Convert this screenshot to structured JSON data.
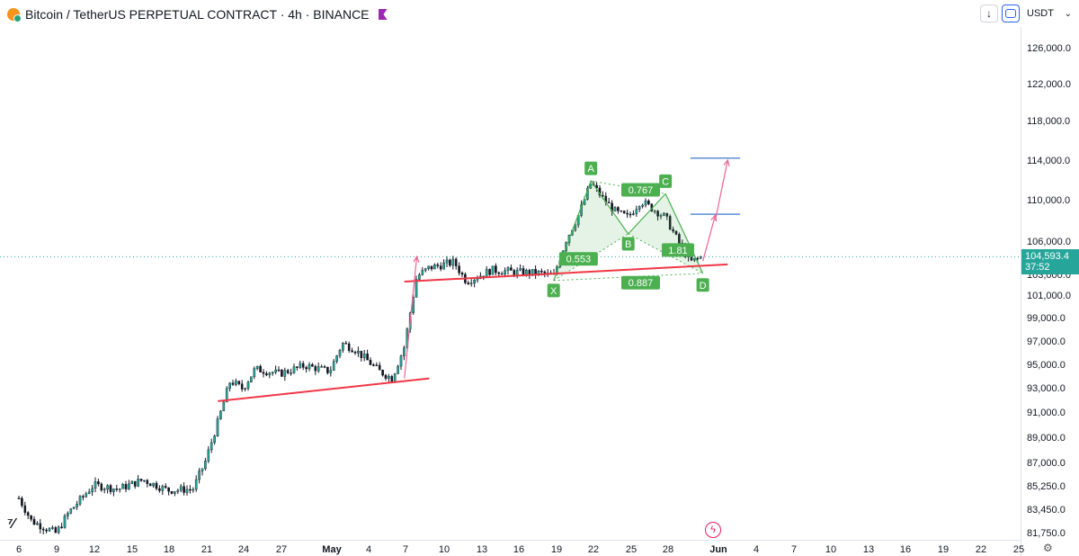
{
  "header": {
    "title": "Bitcoin / TetherUS PERPETUAL CONTRACT · 4h · BINANCE"
  },
  "toolbar": {
    "down_arrow": "↓",
    "currency": "USDT",
    "chevron": "⌄"
  },
  "last_price": {
    "value": "104,593.4",
    "countdown": "37:52",
    "price": 104593.4,
    "color": "#26a69a"
  },
  "colors": {
    "up": "#26a69a",
    "down": "#ef5350",
    "candle_body": "#131722",
    "pattern": "#4caf50",
    "trendline": "#f23645",
    "target": "#5b8fd6",
    "arrow": "#f06292"
  },
  "chart_data": {
    "type": "candlestick",
    "title": "Bitcoin / TetherUS PERPETUAL CONTRACT · 4h · BINANCE",
    "x_axis": {
      "tick_labels": [
        "6",
        "9",
        "12",
        "15",
        "18",
        "21",
        "24",
        "27",
        "May",
        "4",
        "7",
        "10",
        "13",
        "16",
        "19",
        "22",
        "25",
        "28",
        "Jun",
        "4",
        "7",
        "10",
        "13",
        "16",
        "19",
        "22",
        "25"
      ]
    },
    "y_axis": {
      "tick_labels": [
        "126,000.0",
        "122,000.0",
        "118,000.0",
        "114,000.0",
        "110,000.0",
        "106,000.0",
        "103,000.0",
        "101,000.0",
        "99,000.0",
        "97,000.0",
        "95,000.0",
        "93,000.0",
        "91,000.0",
        "89,000.0",
        "87,000.0",
        "85,250.0",
        "83,450.0",
        "81,750.0"
      ],
      "ticks": [
        126000,
        122000,
        118000,
        114000,
        110000,
        106000,
        103000,
        101000,
        99000,
        97000,
        95000,
        93000,
        91000,
        89000,
        87000,
        85250,
        83450,
        81750
      ]
    },
    "price_path": [
      {
        "date": "Apr 6",
        "close": 84300
      },
      {
        "date": "Apr 7",
        "close": 82600
      },
      {
        "date": "Apr 9",
        "close": 81700
      },
      {
        "date": "Apr 10",
        "close": 83200
      },
      {
        "date": "Apr 12",
        "close": 85300
      },
      {
        "date": "Apr 14",
        "close": 85000
      },
      {
        "date": "Apr 16",
        "close": 85700
      },
      {
        "date": "Apr 18",
        "close": 84900
      },
      {
        "date": "Apr 20",
        "close": 85000
      },
      {
        "date": "Apr 21",
        "close": 87100
      },
      {
        "date": "Apr 22",
        "close": 90200
      },
      {
        "date": "Apr 23",
        "close": 93600
      },
      {
        "date": "Apr 24",
        "close": 92900
      },
      {
        "date": "Apr 25",
        "close": 94600
      },
      {
        "date": "Apr 27",
        "close": 94200
      },
      {
        "date": "Apr 29",
        "close": 94900
      },
      {
        "date": "May 1",
        "close": 94400
      },
      {
        "date": "May 2",
        "close": 96800
      },
      {
        "date": "May 3",
        "close": 96300
      },
      {
        "date": "May 5",
        "close": 94400
      },
      {
        "date": "May 6",
        "close": 93800
      },
      {
        "date": "May 7",
        "close": 96500
      },
      {
        "date": "May 8",
        "close": 102800
      },
      {
        "date": "May 9",
        "close": 103600
      },
      {
        "date": "May 11",
        "close": 104100
      },
      {
        "date": "May 12",
        "close": 102300
      },
      {
        "date": "May 14",
        "close": 103400
      },
      {
        "date": "May 16",
        "close": 103200
      },
      {
        "date": "May 18",
        "close": 103100
      },
      {
        "date": "May 19",
        "close": 102800
      },
      {
        "date": "May 20",
        "close": 106100
      },
      {
        "date": "May 21",
        "close": 108500
      },
      {
        "date": "May 22",
        "close": 111700
      },
      {
        "date": "May 23",
        "close": 110100
      },
      {
        "date": "May 24",
        "close": 108800
      },
      {
        "date": "May 25",
        "close": 108300
      },
      {
        "date": "May 26",
        "close": 109900
      },
      {
        "date": "May 27",
        "close": 109100
      },
      {
        "date": "May 28",
        "close": 108300
      },
      {
        "date": "May 29",
        "close": 106000
      },
      {
        "date": "May 30",
        "close": 104100
      },
      {
        "date": "May 31",
        "close": 104593
      }
    ],
    "harmonic_pattern": {
      "points": [
        {
          "label": "X",
          "date": "May 19",
          "price": 102400
        },
        {
          "label": "A",
          "date": "May 22",
          "price": 111900
        },
        {
          "label": "B",
          "date": "May 25",
          "price": 106700
        },
        {
          "label": "C",
          "date": "May 28",
          "price": 110600
        },
        {
          "label": "D",
          "date": "May 31",
          "price": 103100
        }
      ],
      "ratios": [
        {
          "value": "0.767",
          "date": "May 26",
          "price": 111000
        },
        {
          "value": "0.553",
          "date": "May 21",
          "price": 104400
        },
        {
          "value": "1.81",
          "date": "May 29",
          "price": 105200
        },
        {
          "value": "0.887",
          "date": "May 26",
          "price": 102200
        }
      ]
    },
    "trendlines": [
      {
        "from": {
          "date": "Apr 22",
          "price": 91900
        },
        "to": {
          "date": "May 9",
          "price": 93800
        }
      },
      {
        "from": {
          "date": "May 7",
          "price": 102300
        },
        "to": {
          "date": "Jun 2",
          "price": 103900
        }
      }
    ],
    "target_levels": [
      {
        "price": 114200,
        "from": "May 30",
        "to": "Jun 3"
      },
      {
        "price": 108600,
        "from": "May 30",
        "to": "Jun 3"
      }
    ],
    "projection_arrows": [
      {
        "from": {
          "date": "May 7",
          "price": 93800
        },
        "to": {
          "date": "May 8",
          "price": 104600
        }
      },
      {
        "from": {
          "date": "May 31",
          "price": 104200
        },
        "to": {
          "date": "Jun 1",
          "price": 108500
        }
      },
      {
        "from": {
          "date": "Jun 1",
          "price": 108000
        },
        "to": {
          "date": "Jun 2",
          "price": 114000
        }
      }
    ]
  }
}
